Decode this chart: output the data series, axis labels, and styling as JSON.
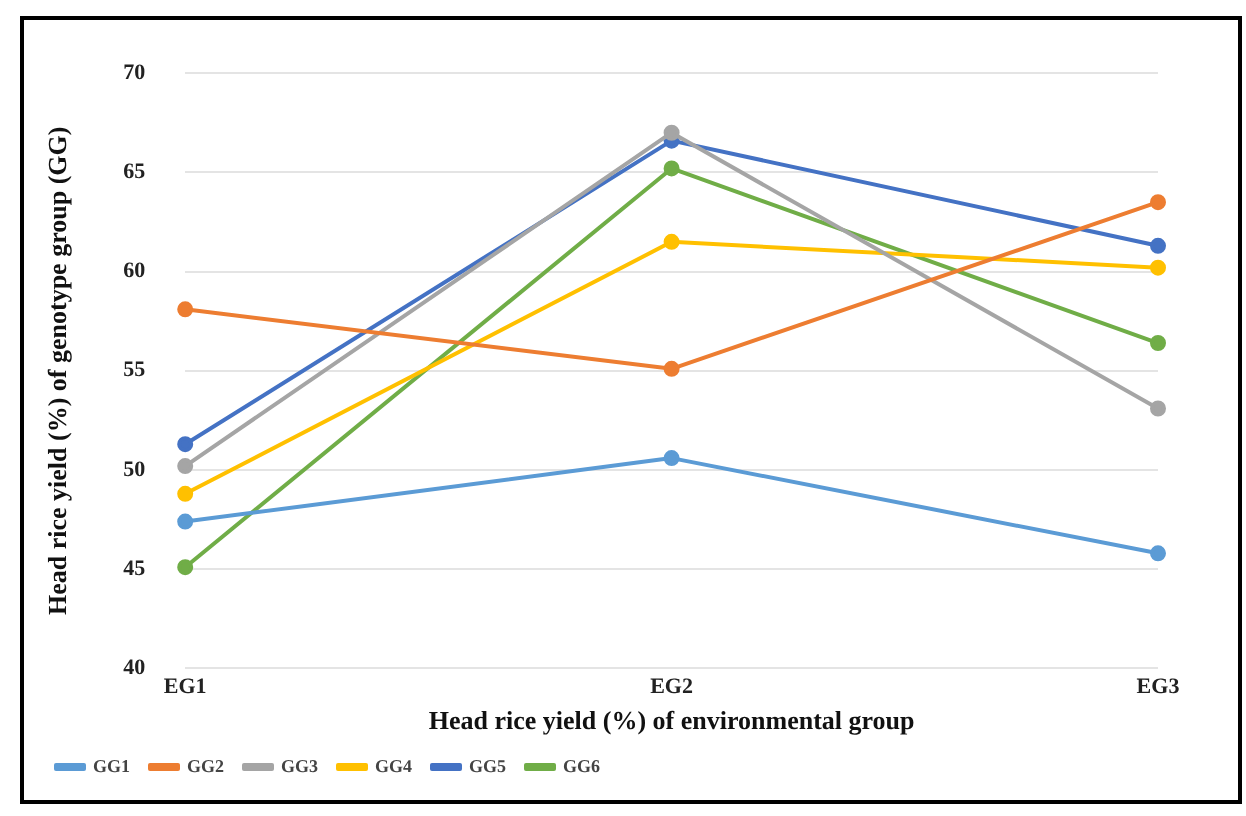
{
  "chart_data": {
    "type": "line",
    "xlabel": "Head rice yield (%) of environmental group",
    "ylabel": "Head rice yield (%) of genotype group (GG)",
    "categories": [
      "EG1",
      "EG2",
      "EG3"
    ],
    "series": [
      {
        "name": "GG1",
        "color": "#5b9bd5",
        "values": [
          47.4,
          50.6,
          45.8
        ]
      },
      {
        "name": "GG2",
        "color": "#ed7d31",
        "values": [
          58.1,
          55.1,
          63.5
        ]
      },
      {
        "name": "GG3",
        "color": "#a5a5a5",
        "values": [
          50.2,
          67.0,
          53.1
        ]
      },
      {
        "name": "GG4",
        "color": "#ffc000",
        "values": [
          48.8,
          61.5,
          60.2
        ]
      },
      {
        "name": "GG5",
        "color": "#4472c4",
        "values": [
          51.3,
          66.6,
          61.3
        ]
      },
      {
        "name": "GG6",
        "color": "#70ad47",
        "values": [
          45.1,
          65.2,
          56.4
        ]
      }
    ],
    "ylim": [
      40,
      70
    ],
    "yticks": [
      40,
      45,
      50,
      55,
      60,
      65,
      70
    ],
    "grid": "y",
    "legend": "bottom left",
    "marker": "circle",
    "line_style": "solid"
  }
}
